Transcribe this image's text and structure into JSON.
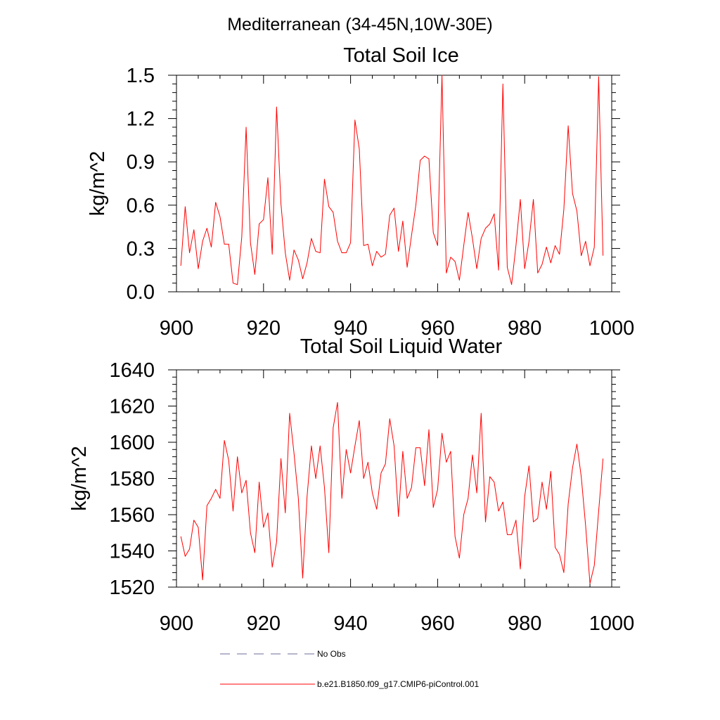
{
  "figure_title": "Mediterranean (34-45N,10W-30E)",
  "colors": {
    "model": "#ff0000",
    "obs": "#6b6b9a",
    "axis": "#000000"
  },
  "chart_data": [
    {
      "type": "line",
      "title": "Total Soil Ice",
      "xlabel": "",
      "ylabel": "kg/m^2",
      "xlim": [
        900,
        1000
      ],
      "ylim": [
        0.0,
        1.5
      ],
      "xticks": [
        900,
        920,
        940,
        960,
        980,
        1000
      ],
      "xtick_labels": [
        "900",
        "920",
        "940",
        "960",
        "980",
        "1000"
      ],
      "yticks": [
        0.0,
        0.3,
        0.6,
        0.9,
        1.2,
        1.5
      ],
      "ytick_labels": [
        "0.0",
        "0.3",
        "0.6",
        "0.9",
        "1.2",
        "1.5"
      ],
      "x_start": 901,
      "series": [
        {
          "name": "b.e21.B1850.f09_g17.CMIP6-piControl.001",
          "values": [
            0.18,
            0.59,
            0.27,
            0.43,
            0.16,
            0.35,
            0.44,
            0.31,
            0.62,
            0.52,
            0.33,
            0.33,
            0.06,
            0.05,
            0.38,
            1.14,
            0.34,
            0.12,
            0.47,
            0.5,
            0.79,
            0.26,
            1.28,
            0.61,
            0.27,
            0.08,
            0.29,
            0.22,
            0.09,
            0.2,
            0.37,
            0.28,
            0.27,
            0.78,
            0.59,
            0.55,
            0.35,
            0.27,
            0.27,
            0.34,
            1.19,
            0.99,
            0.32,
            0.33,
            0.18,
            0.28,
            0.24,
            0.26,
            0.53,
            0.58,
            0.28,
            0.49,
            0.17,
            0.39,
            0.6,
            0.91,
            0.94,
            0.92,
            0.41,
            0.32,
            1.5,
            0.13,
            0.24,
            0.21,
            0.08,
            0.32,
            0.55,
            0.37,
            0.16,
            0.37,
            0.44,
            0.47,
            0.54,
            0.15,
            1.44,
            0.17,
            0.05,
            0.32,
            0.64,
            0.16,
            0.35,
            0.64,
            0.13,
            0.19,
            0.31,
            0.2,
            0.32,
            0.26,
            0.57,
            1.15,
            0.68,
            0.56,
            0.25,
            0.35,
            0.18,
            0.31,
            1.49,
            0.25
          ]
        }
      ]
    },
    {
      "type": "line",
      "title": "Total Soil Liquid Water",
      "xlabel": "",
      "ylabel": "kg/m^2",
      "xlim": [
        900,
        1000
      ],
      "ylim": [
        1520,
        1640
      ],
      "xticks": [
        900,
        920,
        940,
        960,
        980,
        1000
      ],
      "xtick_labels": [
        "900",
        "920",
        "940",
        "960",
        "980",
        "1000"
      ],
      "yticks": [
        1520,
        1540,
        1560,
        1580,
        1600,
        1620,
        1640
      ],
      "ytick_labels": [
        "1520",
        "1540",
        "1560",
        "1580",
        "1600",
        "1620",
        "1640"
      ],
      "x_start": 901,
      "series": [
        {
          "name": "b.e21.B1850.f09_g17.CMIP6-piControl.001",
          "values": [
            1548,
            1537,
            1541,
            1557,
            1553,
            1524,
            1565,
            1569,
            1574,
            1569,
            1601,
            1590,
            1562,
            1592,
            1572,
            1579,
            1550,
            1539,
            1578,
            1553,
            1561,
            1531,
            1545,
            1591,
            1561,
            1616,
            1594,
            1569,
            1525,
            1570,
            1598,
            1580,
            1598,
            1575,
            1539,
            1608,
            1622,
            1569,
            1596,
            1583,
            1598,
            1612,
            1580,
            1589,
            1572,
            1563,
            1583,
            1588,
            1613,
            1598,
            1559,
            1595,
            1569,
            1575,
            1597,
            1597,
            1576,
            1607,
            1564,
            1574,
            1605,
            1589,
            1595,
            1548,
            1536,
            1560,
            1569,
            1593,
            1572,
            1616,
            1556,
            1581,
            1578,
            1562,
            1567,
            1549,
            1549,
            1557,
            1530,
            1570,
            1587,
            1556,
            1558,
            1578,
            1563,
            1584,
            1542,
            1538,
            1528,
            1566,
            1586,
            1599,
            1581,
            1554,
            1522,
            1532,
            1562,
            1591
          ]
        }
      ]
    }
  ],
  "legend": [
    {
      "label": "No Obs",
      "style": "dashed"
    },
    {
      "label": "b.e21.B1850.f09_g17.CMIP6-piControl.001",
      "style": "solid"
    }
  ]
}
